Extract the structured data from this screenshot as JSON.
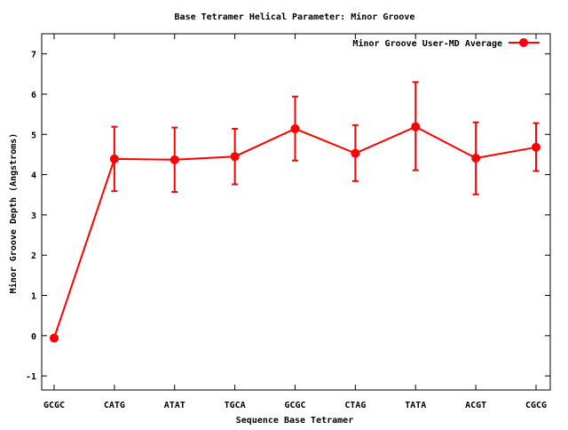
{
  "chart_data": {
    "type": "line",
    "title": "Base Tetramer Helical Parameter: Minor Groove",
    "xlabel": "Sequence Base Tetramer",
    "ylabel": "Minor Groove Depth (Angstroms)",
    "categories": [
      "GCGC",
      "CATG",
      "ATAT",
      "TGCA",
      "GCGC",
      "CTAG",
      "TATA",
      "ACGT",
      "CGCG"
    ],
    "ylim": [
      -1.35,
      7.5
    ],
    "yticks": [
      -1,
      0,
      1,
      2,
      3,
      4,
      5,
      6,
      7
    ],
    "grid": false,
    "legend_position": "top-right",
    "series": [
      {
        "name": "Minor Groove User-MD Average",
        "color": "#ff0000",
        "marker": "circle",
        "values": [
          -0.06,
          4.39,
          4.37,
          4.45,
          5.14,
          4.53,
          5.19,
          4.41,
          4.68
        ],
        "error_low": [
          null,
          3.59,
          3.57,
          3.76,
          4.35,
          3.84,
          4.11,
          3.51,
          4.09
        ],
        "error_high": [
          null,
          5.19,
          5.17,
          5.14,
          5.94,
          5.23,
          6.3,
          5.3,
          5.28
        ]
      }
    ]
  }
}
